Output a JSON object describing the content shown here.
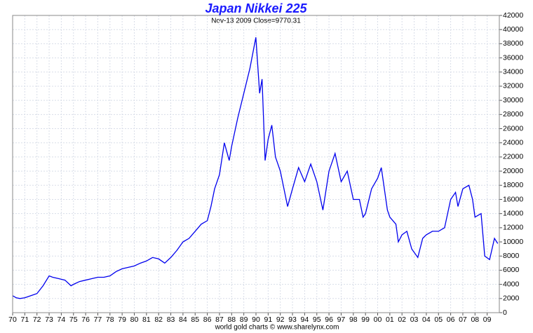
{
  "chart_data": {
    "type": "line",
    "title": "Japan Nikkei 225",
    "subtitle": "Nov-13 2009   Close=9770.31",
    "footer": "world gold charts © www.sharelynx.com",
    "xlim": [
      1970,
      2010
    ],
    "ylim": [
      0,
      42000
    ],
    "grid": true,
    "xticks": [
      {
        "value": 1970,
        "label": "70"
      },
      {
        "value": 1971,
        "label": "71"
      },
      {
        "value": 1972,
        "label": "72"
      },
      {
        "value": 1973,
        "label": "73"
      },
      {
        "value": 1974,
        "label": "74"
      },
      {
        "value": 1975,
        "label": "75"
      },
      {
        "value": 1976,
        "label": "76"
      },
      {
        "value": 1977,
        "label": "77"
      },
      {
        "value": 1978,
        "label": "78"
      },
      {
        "value": 1979,
        "label": "79"
      },
      {
        "value": 1980,
        "label": "80"
      },
      {
        "value": 1981,
        "label": "81"
      },
      {
        "value": 1982,
        "label": "82"
      },
      {
        "value": 1983,
        "label": "83"
      },
      {
        "value": 1984,
        "label": "84"
      },
      {
        "value": 1985,
        "label": "85"
      },
      {
        "value": 1986,
        "label": "86"
      },
      {
        "value": 1987,
        "label": "87"
      },
      {
        "value": 1988,
        "label": "88"
      },
      {
        "value": 1989,
        "label": "89"
      },
      {
        "value": 1990,
        "label": "90"
      },
      {
        "value": 1991,
        "label": "91"
      },
      {
        "value": 1992,
        "label": "92"
      },
      {
        "value": 1993,
        "label": "93"
      },
      {
        "value": 1994,
        "label": "94"
      },
      {
        "value": 1995,
        "label": "95"
      },
      {
        "value": 1996,
        "label": "96"
      },
      {
        "value": 1997,
        "label": "97"
      },
      {
        "value": 1998,
        "label": "98"
      },
      {
        "value": 1999,
        "label": "99"
      },
      {
        "value": 2000,
        "label": "00"
      },
      {
        "value": 2001,
        "label": "01"
      },
      {
        "value": 2002,
        "label": "02"
      },
      {
        "value": 2003,
        "label": "03"
      },
      {
        "value": 2004,
        "label": "04"
      },
      {
        "value": 2005,
        "label": "05"
      },
      {
        "value": 2006,
        "label": "06"
      },
      {
        "value": 2007,
        "label": "07"
      },
      {
        "value": 2008,
        "label": "08"
      },
      {
        "value": 2009,
        "label": "09"
      }
    ],
    "yticks": [
      0,
      2000,
      4000,
      6000,
      8000,
      10000,
      12000,
      14000,
      16000,
      18000,
      20000,
      22000,
      24000,
      26000,
      28000,
      30000,
      32000,
      34000,
      36000,
      38000,
      40000,
      42000
    ],
    "x": [
      1970,
      1970.3,
      1970.6,
      1971,
      1971.5,
      1972,
      1972.5,
      1973,
      1973.3,
      1973.8,
      1974.3,
      1974.8,
      1975,
      1975.5,
      1976,
      1976.5,
      1977,
      1977.5,
      1978,
      1978.5,
      1979,
      1979.5,
      1980,
      1980.5,
      1981,
      1981.5,
      1982,
      1982.5,
      1983,
      1983.5,
      1984,
      1984.5,
      1985,
      1985.5,
      1986,
      1986.3,
      1986.6,
      1987,
      1987.4,
      1987.8,
      1988,
      1988.5,
      1989,
      1989.5,
      1989.99,
      1990.3,
      1990.5,
      1990.75,
      1991,
      1991.3,
      1991.6,
      1992,
      1992.6,
      1993,
      1993.5,
      1994,
      1994.5,
      1995,
      1995.5,
      1996,
      1996.5,
      1997,
      1997.5,
      1998,
      1998.5,
      1998.8,
      1999,
      1999.5,
      2000,
      2000.3,
      2000.8,
      2001,
      2001.5,
      2001.7,
      2002,
      2002.4,
      2002.8,
      2003.3,
      2003.7,
      2004,
      2004.5,
      2005,
      2005.5,
      2006,
      2006.4,
      2006.6,
      2007,
      2007.5,
      2007.8,
      2008,
      2008.5,
      2008.8,
      2009.2,
      2009.6,
      2009.87
    ],
    "series": [
      {
        "name": "Nikkei 225",
        "color": "#0000ee",
        "values": [
          2400,
          2100,
          2000,
          2100,
          2400,
          2700,
          3800,
          5200,
          5000,
          4800,
          4600,
          3800,
          4000,
          4400,
          4600,
          4800,
          5000,
          5000,
          5200,
          5800,
          6200,
          6400,
          6600,
          7000,
          7300,
          7800,
          7600,
          7000,
          7800,
          8800,
          10000,
          10500,
          11500,
          12500,
          13000,
          15000,
          17500,
          19500,
          24000,
          21500,
          23500,
          27500,
          31000,
          34500,
          38900,
          31000,
          33000,
          21500,
          24500,
          26500,
          22000,
          20000,
          15000,
          17500,
          20500,
          18500,
          21000,
          18500,
          14500,
          20000,
          22500,
          18500,
          20000,
          16000,
          16000,
          13500,
          14000,
          17500,
          19000,
          20500,
          14500,
          13500,
          12500,
          10000,
          11000,
          11500,
          9000,
          7800,
          10500,
          11000,
          11500,
          11500,
          12000,
          16000,
          17000,
          15000,
          17500,
          18000,
          16000,
          13500,
          14000,
          8000,
          7500,
          10500,
          9770
        ]
      }
    ]
  }
}
